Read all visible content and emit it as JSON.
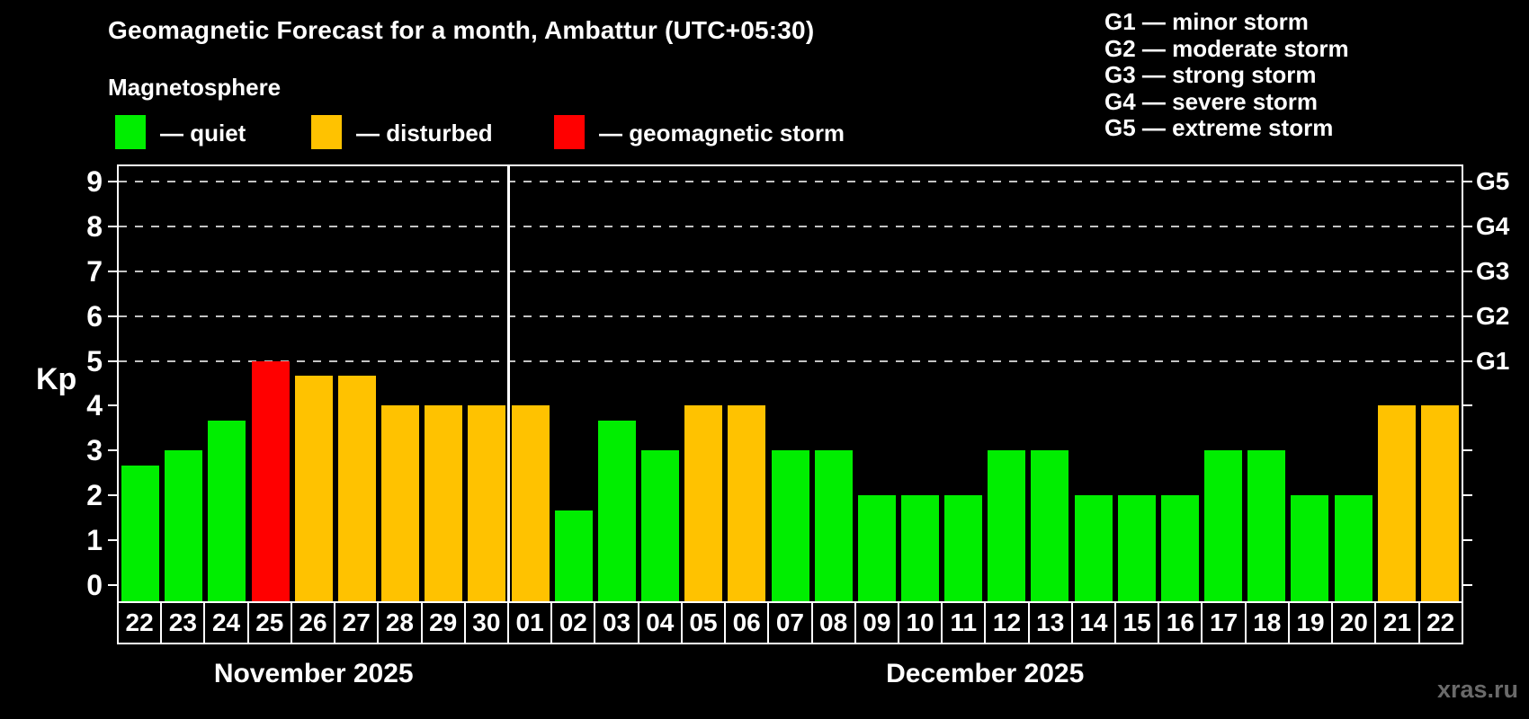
{
  "title": "Geomagnetic Forecast for a month, Ambattur (UTC+05:30)",
  "subtitle": "Magnetosphere",
  "legend": {
    "quiet": "— quiet",
    "disturbed": "— disturbed",
    "storm": "— geomagnetic storm"
  },
  "g_legend": [
    "G1 — minor storm",
    "G2 — moderate storm",
    "G3 — strong storm",
    "G4 — severe storm",
    "G5 — extreme storm"
  ],
  "kp_label": "Kp",
  "watermark": "xras.ru",
  "colors": {
    "background": "#000000",
    "text": "#ffffff",
    "quiet": "#00ee00",
    "disturbed": "#ffc200",
    "storm": "#ff0000",
    "grid": "#c3c3c3",
    "frame": "#ffffff",
    "watermark": "#6a6a6a"
  },
  "months": [
    {
      "label": "November 2025",
      "days": 9
    },
    {
      "label": "December 2025",
      "days": 22
    }
  ],
  "chart_data": {
    "type": "bar",
    "title": "Geomagnetic Forecast for a month, Ambattur (UTC+05:30)",
    "xlabel": "",
    "ylabel": "Kp",
    "ylim": [
      0,
      9
    ],
    "y_ticks": [
      0,
      1,
      2,
      3,
      4,
      5,
      6,
      7,
      8,
      9
    ],
    "right_axis_labels": [
      {
        "kp": 5,
        "label": "G1"
      },
      {
        "kp": 6,
        "label": "G2"
      },
      {
        "kp": 7,
        "label": "G3"
      },
      {
        "kp": 8,
        "label": "G4"
      },
      {
        "kp": 9,
        "label": "G5"
      }
    ],
    "gridlines_at": [
      5,
      6,
      7,
      8,
      9
    ],
    "month_separator_after_index": 8,
    "state_thresholds": {
      "disturbed_min": 4,
      "storm_min": 5
    },
    "categories": [
      "22",
      "23",
      "24",
      "25",
      "26",
      "27",
      "28",
      "29",
      "30",
      "01",
      "02",
      "03",
      "04",
      "05",
      "06",
      "07",
      "08",
      "09",
      "10",
      "11",
      "12",
      "13",
      "14",
      "15",
      "16",
      "17",
      "18",
      "19",
      "20",
      "21",
      "22"
    ],
    "values": [
      2.67,
      3,
      3.67,
      5,
      4.67,
      4.67,
      4,
      4,
      4,
      4,
      1.67,
      3.67,
      3,
      4,
      4,
      3,
      3,
      2,
      2,
      2,
      3,
      3,
      2,
      2,
      2,
      3,
      3,
      2,
      2,
      4,
      4
    ],
    "states": [
      "quiet",
      "quiet",
      "quiet",
      "storm",
      "disturbed",
      "disturbed",
      "disturbed",
      "disturbed",
      "disturbed",
      "disturbed",
      "quiet",
      "quiet",
      "quiet",
      "disturbed",
      "disturbed",
      "quiet",
      "quiet",
      "quiet",
      "quiet",
      "quiet",
      "quiet",
      "quiet",
      "quiet",
      "quiet",
      "quiet",
      "quiet",
      "quiet",
      "quiet",
      "quiet",
      "disturbed",
      "disturbed"
    ]
  }
}
